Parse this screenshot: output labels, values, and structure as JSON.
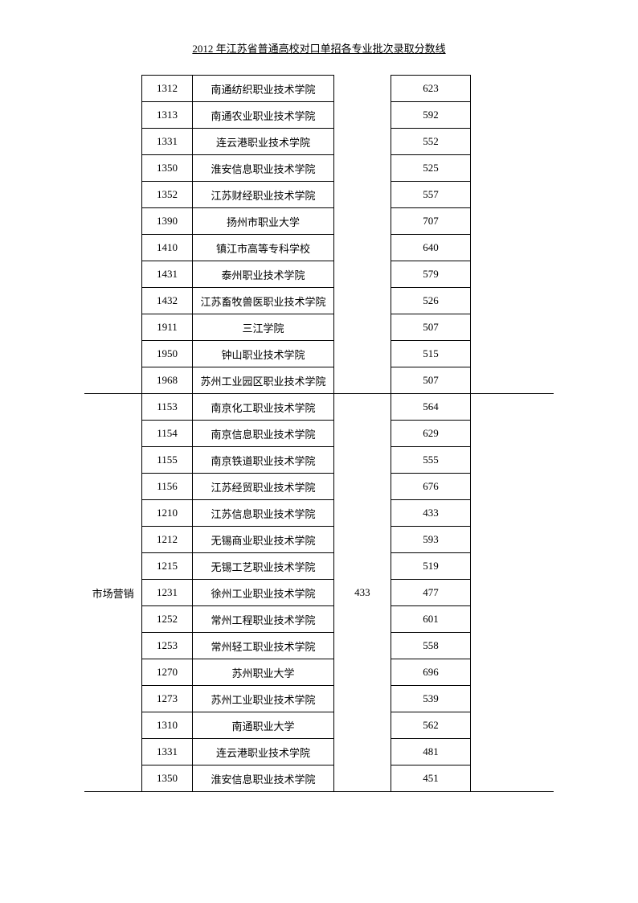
{
  "header_title": "2012 年江苏省普通高校对口单招各专业批次录取分数线",
  "group1": {
    "rows": [
      {
        "code": "1312",
        "name": "南通纺织职业技术学院",
        "score": "623"
      },
      {
        "code": "1313",
        "name": "南通农业职业技术学院",
        "score": "592"
      },
      {
        "code": "1331",
        "name": "连云港职业技术学院",
        "score": "552"
      },
      {
        "code": "1350",
        "name": "淮安信息职业技术学院",
        "score": "525"
      },
      {
        "code": "1352",
        "name": "江苏财经职业技术学院",
        "score": "557"
      },
      {
        "code": "1390",
        "name": "扬州市职业大学",
        "score": "707"
      },
      {
        "code": "1410",
        "name": "镇江市高等专科学校",
        "score": "640"
      },
      {
        "code": "1431",
        "name": "泰州职业技术学院",
        "score": "579"
      },
      {
        "code": "1432",
        "name": "江苏畜牧兽医职业技术学院",
        "score": "526"
      },
      {
        "code": "1911",
        "name": "三江学院",
        "score": "507"
      },
      {
        "code": "1950",
        "name": "钟山职业技术学院",
        "score": "515"
      },
      {
        "code": "1968",
        "name": "苏州工业园区职业技术学院",
        "score": "507"
      }
    ]
  },
  "group2": {
    "category": "市场营销",
    "base_score": "433",
    "rows": [
      {
        "code": "1153",
        "name": "南京化工职业技术学院",
        "score": "564"
      },
      {
        "code": "1154",
        "name": "南京信息职业技术学院",
        "score": "629"
      },
      {
        "code": "1155",
        "name": "南京铁道职业技术学院",
        "score": "555"
      },
      {
        "code": "1156",
        "name": "江苏经贸职业技术学院",
        "score": "676"
      },
      {
        "code": "1210",
        "name": "江苏信息职业技术学院",
        "score": "433"
      },
      {
        "code": "1212",
        "name": "无锡商业职业技术学院",
        "score": "593"
      },
      {
        "code": "1215",
        "name": "无锡工艺职业技术学院",
        "score": "519"
      },
      {
        "code": "1231",
        "name": "徐州工业职业技术学院",
        "score": "477"
      },
      {
        "code": "1252",
        "name": "常州工程职业技术学院",
        "score": "601"
      },
      {
        "code": "1253",
        "name": "常州轻工职业技术学院",
        "score": "558"
      },
      {
        "code": "1270",
        "name": "苏州职业大学",
        "score": "696"
      },
      {
        "code": "1273",
        "name": "苏州工业职业技术学院",
        "score": "539"
      },
      {
        "code": "1310",
        "name": "南通职业大学",
        "score": "562"
      },
      {
        "code": "1331",
        "name": "连云港职业技术学院",
        "score": "481"
      },
      {
        "code": "1350",
        "name": "淮安信息职业技术学院",
        "score": "451"
      }
    ]
  }
}
